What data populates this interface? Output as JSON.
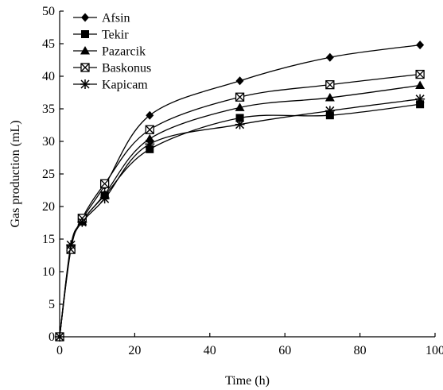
{
  "chart_data": {
    "type": "line",
    "xlabel": "Time (h)",
    "ylabel": "Gas production (mL)",
    "xlim": [
      0,
      100
    ],
    "ylim": [
      0,
      50
    ],
    "xticks": [
      0,
      20,
      40,
      60,
      80,
      100
    ],
    "yticks": [
      0,
      5,
      10,
      15,
      20,
      25,
      30,
      35,
      40,
      45,
      50
    ],
    "grid": false,
    "legend_position": "top-left",
    "series": [
      {
        "name": "Afsin",
        "marker": "diamond",
        "color": "#000000",
        "x": [
          0,
          3,
          6,
          12,
          24,
          48,
          72,
          96
        ],
        "y": [
          0,
          13.8,
          18.0,
          23.2,
          34.0,
          39.3,
          42.9,
          44.8
        ]
      },
      {
        "name": "Tekir",
        "marker": "square",
        "color": "#000000",
        "x": [
          0,
          3,
          6,
          12,
          24,
          48,
          72,
          96
        ],
        "y": [
          0,
          13.6,
          17.7,
          21.7,
          28.8,
          33.6,
          34.0,
          35.7
        ]
      },
      {
        "name": "Pazarcik",
        "marker": "triangle",
        "color": "#000000",
        "x": [
          0,
          3,
          6,
          12,
          24,
          48,
          72,
          96
        ],
        "y": [
          0,
          13.8,
          17.7,
          21.9,
          30.4,
          35.2,
          36.7,
          38.6
        ]
      },
      {
        "name": "Baskonus",
        "marker": "boxed-x",
        "color": "#000000",
        "x": [
          0,
          3,
          6,
          12,
          24,
          48,
          72,
          96
        ],
        "y": [
          0,
          13.4,
          18.2,
          23.5,
          31.8,
          36.8,
          38.7,
          40.3
        ]
      },
      {
        "name": "Kapicam",
        "marker": "asterisk",
        "color": "#000000",
        "x": [
          0,
          3,
          6,
          12,
          24,
          48,
          72,
          96
        ],
        "y": [
          0,
          14.1,
          17.6,
          21.2,
          29.6,
          32.6,
          34.7,
          36.5
        ]
      }
    ]
  }
}
